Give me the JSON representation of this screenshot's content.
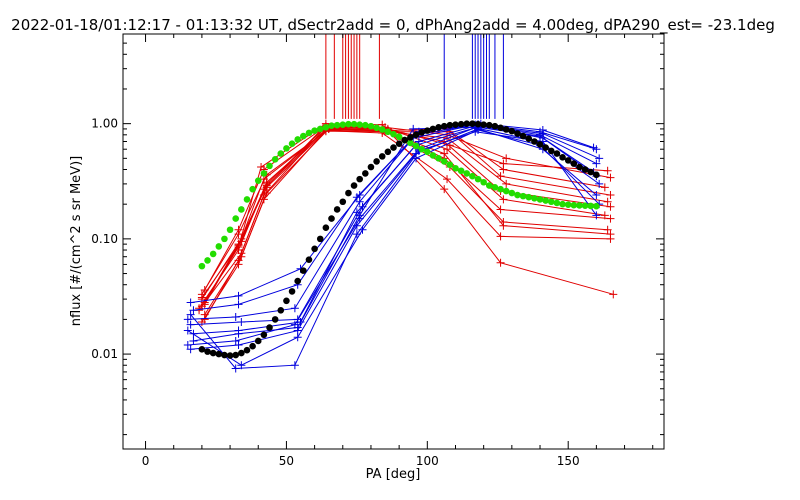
{
  "chart_data": {
    "type": "line",
    "title": "2022-01-18/01:12:17 - 01:13:32 UT, dSectr2add = 0, dPhAng2add = 4.00deg, dPA290_est= -23.1deg",
    "xlabel": "PA [deg]",
    "ylabel": "nflux [#/(cm^2 s sr MeV)]",
    "xlim": [
      -8,
      184
    ],
    "ylim": [
      0.0015,
      6.0
    ],
    "yscale": "log",
    "grid": false,
    "xticks": [
      0,
      50,
      100,
      150
    ],
    "xtick_labels": [
      "0",
      "50",
      "100",
      "150"
    ],
    "yticks": [
      0.01,
      0.1,
      1.0
    ],
    "ytick_labels": [
      "0.01",
      "0.10",
      "1.00"
    ],
    "colors": {
      "red": "#e00000",
      "blue": "#0000dd",
      "green": "#22dd00",
      "black": "#000000"
    },
    "red_marker_pa": [
      64,
      67,
      70,
      71,
      72,
      73,
      74,
      75,
      76,
      83
    ],
    "blue_marker_pa": [
      106,
      116,
      117,
      118,
      119,
      120,
      121,
      122,
      124,
      127
    ],
    "red_series": [
      {
        "x": [
          20,
          33,
          42,
          64,
          84,
          107,
          126,
          165
        ],
        "y": [
          0.019,
          0.06,
          0.22,
          0.87,
          0.83,
          0.33,
          0.105,
          0.1
        ]
      },
      {
        "x": [
          21,
          34,
          43,
          65,
          85,
          108,
          127,
          164
        ],
        "y": [
          0.022,
          0.07,
          0.25,
          0.9,
          0.86,
          0.42,
          0.14,
          0.12
        ]
      },
      {
        "x": [
          19,
          33,
          42,
          63,
          84,
          106,
          126,
          165
        ],
        "y": [
          0.025,
          0.08,
          0.27,
          0.92,
          0.9,
          0.5,
          0.18,
          0.15
        ]
      },
      {
        "x": [
          21,
          33,
          43,
          64,
          85,
          107,
          127,
          163
        ],
        "y": [
          0.028,
          0.09,
          0.3,
          0.94,
          0.92,
          0.6,
          0.22,
          0.16
        ]
      },
      {
        "x": [
          20,
          34,
          42,
          65,
          86,
          106,
          126,
          165
        ],
        "y": [
          0.03,
          0.1,
          0.33,
          0.9,
          0.88,
          0.7,
          0.26,
          0.19
        ]
      },
      {
        "x": [
          20,
          33,
          43,
          64,
          84,
          107,
          128,
          164
        ],
        "y": [
          0.033,
          0.11,
          0.36,
          0.86,
          0.86,
          0.75,
          0.3,
          0.21
        ]
      },
      {
        "x": [
          21,
          33,
          42,
          63,
          85,
          108,
          126,
          165
        ],
        "y": [
          0.02,
          0.065,
          0.24,
          0.88,
          0.85,
          0.85,
          0.35,
          0.24
        ]
      },
      {
        "x": [
          19,
          34,
          43,
          65,
          84,
          107,
          127,
          163
        ],
        "y": [
          0.024,
          0.075,
          0.28,
          0.91,
          0.87,
          0.9,
          0.4,
          0.28
        ]
      },
      {
        "x": [
          20,
          33,
          41,
          64,
          84,
          106,
          126,
          166
        ],
        "y": [
          0.026,
          0.085,
          0.42,
          1.0,
          0.98,
          0.27,
          0.062,
          0.033
        ]
      },
      {
        "x": [
          21,
          33,
          42,
          64,
          85,
          107,
          128,
          165
        ],
        "y": [
          0.036,
          0.12,
          0.4,
          0.95,
          0.93,
          0.8,
          0.5,
          0.34
        ]
      },
      {
        "x": [
          20,
          34,
          43,
          65,
          86,
          108,
          127,
          164
        ],
        "y": [
          0.031,
          0.095,
          0.31,
          0.93,
          0.9,
          0.65,
          0.45,
          0.39
        ]
      },
      {
        "x": [
          21,
          33,
          43,
          64,
          84,
          106,
          127,
          165
        ],
        "y": [
          0.027,
          0.088,
          0.29,
          0.89,
          0.88,
          0.55,
          0.13,
          0.11
        ]
      }
    ],
    "blue_series": [
      {
        "x": [
          16,
          33,
          54,
          75,
          96,
          118,
          141,
          160
        ],
        "y": [
          0.011,
          0.012,
          0.016,
          0.13,
          0.55,
          0.9,
          0.6,
          0.24
        ]
      },
      {
        "x": [
          15,
          32,
          53,
          76,
          97,
          117,
          140,
          161
        ],
        "y": [
          0.012,
          0.013,
          0.018,
          0.15,
          0.6,
          0.92,
          0.7,
          0.3
        ]
      },
      {
        "x": [
          17,
          33,
          55,
          75,
          96,
          119,
          141,
          159
        ],
        "y": [
          0.015,
          0.016,
          0.019,
          0.17,
          0.65,
          0.95,
          0.75,
          0.38
        ]
      },
      {
        "x": [
          16,
          34,
          54,
          77,
          97,
          118,
          140,
          160
        ],
        "y": [
          0.018,
          0.019,
          0.02,
          0.19,
          0.7,
          0.97,
          0.8,
          0.45
        ]
      },
      {
        "x": [
          15,
          32,
          53,
          76,
          95,
          117,
          141,
          161
        ],
        "y": [
          0.02,
          0.021,
          0.025,
          0.21,
          0.75,
          0.98,
          0.82,
          0.5
        ]
      },
      {
        "x": [
          17,
          33,
          54,
          75,
          96,
          118,
          140,
          160
        ],
        "y": [
          0.024,
          0.027,
          0.04,
          0.23,
          0.8,
          0.99,
          0.85,
          0.6
        ]
      },
      {
        "x": [
          16,
          33,
          55,
          76,
          97,
          119,
          141,
          159
        ],
        "y": [
          0.028,
          0.032,
          0.055,
          0.24,
          0.85,
          1.0,
          0.88,
          0.62
        ]
      },
      {
        "x": [
          15,
          34,
          54,
          77,
          96,
          118,
          140,
          161
        ],
        "y": [
          0.016,
          0.008,
          0.014,
          0.12,
          0.5,
          0.88,
          0.65,
          0.2
        ]
      },
      {
        "x": [
          16,
          32,
          53,
          75,
          97,
          117,
          141,
          160
        ],
        "y": [
          0.022,
          0.0075,
          0.008,
          0.11,
          0.58,
          0.85,
          0.7,
          0.16
        ]
      },
      {
        "x": [
          17,
          33,
          54,
          76,
          95,
          118,
          140,
          160
        ],
        "y": [
          0.013,
          0.015,
          0.017,
          0.16,
          0.9,
          0.93,
          0.78,
          0.35
        ]
      }
    ],
    "green_series": {
      "x": [
        20,
        22,
        24,
        26,
        28,
        30,
        32,
        34,
        36,
        38,
        40,
        42,
        44,
        46,
        48,
        50,
        52,
        54,
        56,
        58,
        60,
        62,
        64,
        66,
        68,
        70,
        72,
        74,
        76,
        78,
        80,
        82,
        84,
        86,
        88,
        90,
        92,
        94,
        96,
        98,
        100,
        102,
        104,
        106,
        108,
        110,
        112,
        114,
        116,
        118,
        120,
        122,
        124,
        126,
        128,
        130,
        132,
        134,
        136,
        138,
        140,
        142,
        144,
        146,
        148,
        150,
        152,
        154,
        156,
        158,
        160
      ],
      "y": [
        0.058,
        0.065,
        0.074,
        0.086,
        0.1,
        0.12,
        0.15,
        0.18,
        0.22,
        0.27,
        0.32,
        0.37,
        0.43,
        0.49,
        0.55,
        0.61,
        0.67,
        0.73,
        0.78,
        0.83,
        0.87,
        0.9,
        0.93,
        0.96,
        0.97,
        0.98,
        0.99,
        0.99,
        0.98,
        0.97,
        0.95,
        0.92,
        0.89,
        0.85,
        0.81,
        0.77,
        0.72,
        0.68,
        0.64,
        0.6,
        0.57,
        0.53,
        0.5,
        0.47,
        0.44,
        0.41,
        0.39,
        0.37,
        0.35,
        0.33,
        0.31,
        0.29,
        0.28,
        0.27,
        0.26,
        0.25,
        0.24,
        0.235,
        0.23,
        0.225,
        0.22,
        0.215,
        0.21,
        0.205,
        0.2,
        0.198,
        0.196,
        0.195,
        0.194,
        0.193,
        0.192
      ]
    },
    "black_series": {
      "x": [
        20,
        22,
        24,
        26,
        28,
        30,
        32,
        34,
        36,
        38,
        40,
        42,
        44,
        46,
        48,
        50,
        52,
        54,
        56,
        58,
        60,
        62,
        64,
        66,
        68,
        70,
        72,
        74,
        76,
        78,
        80,
        82,
        84,
        86,
        88,
        90,
        92,
        94,
        96,
        98,
        100,
        102,
        104,
        106,
        108,
        110,
        112,
        114,
        116,
        118,
        120,
        122,
        124,
        126,
        128,
        130,
        132,
        134,
        136,
        138,
        140,
        142,
        144,
        146,
        148,
        150,
        152,
        154,
        156,
        158,
        160
      ],
      "y": [
        0.011,
        0.0105,
        0.0102,
        0.01,
        0.0098,
        0.0097,
        0.0098,
        0.0102,
        0.0108,
        0.0117,
        0.013,
        0.0147,
        0.017,
        0.02,
        0.024,
        0.029,
        0.035,
        0.043,
        0.053,
        0.066,
        0.082,
        0.1,
        0.125,
        0.15,
        0.18,
        0.21,
        0.25,
        0.29,
        0.33,
        0.37,
        0.42,
        0.47,
        0.52,
        0.57,
        0.62,
        0.67,
        0.72,
        0.76,
        0.8,
        0.84,
        0.87,
        0.9,
        0.93,
        0.95,
        0.97,
        0.98,
        0.99,
        1.0,
        1.0,
        0.99,
        0.98,
        0.97,
        0.95,
        0.92,
        0.89,
        0.86,
        0.82,
        0.78,
        0.74,
        0.7,
        0.66,
        0.62,
        0.58,
        0.55,
        0.51,
        0.48,
        0.45,
        0.42,
        0.4,
        0.38,
        0.36
      ]
    }
  }
}
